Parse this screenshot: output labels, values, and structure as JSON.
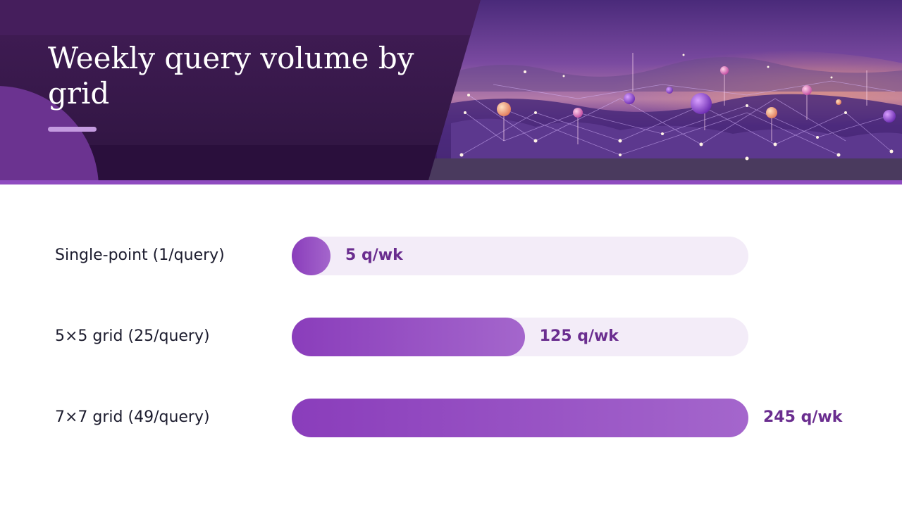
{
  "slide": {
    "title": "Weekly query volume by grid"
  },
  "colors": {
    "header_bg": "#3a1a4c",
    "accent": "#8f4cc0",
    "bar_start": "#8a3dbb",
    "bar_end": "#a466cc",
    "track": "#f3ecf8",
    "value_text": "#6a2d8f",
    "label_text": "#1c1c2e"
  },
  "hero_image": {
    "icon": "network-map-illustration"
  },
  "chart_data": {
    "type": "bar",
    "orientation": "horizontal",
    "categories": [
      "Single-point (1/query)",
      "5×5 grid (25/query)",
      "7×7 grid (49/query)"
    ],
    "values": [
      5,
      125,
      245
    ],
    "value_labels": [
      "5 q/wk",
      "125 q/wk",
      "245 q/wk"
    ],
    "unit": "q/wk",
    "xlim": [
      0,
      245
    ],
    "grid": false,
    "legend": "none"
  }
}
